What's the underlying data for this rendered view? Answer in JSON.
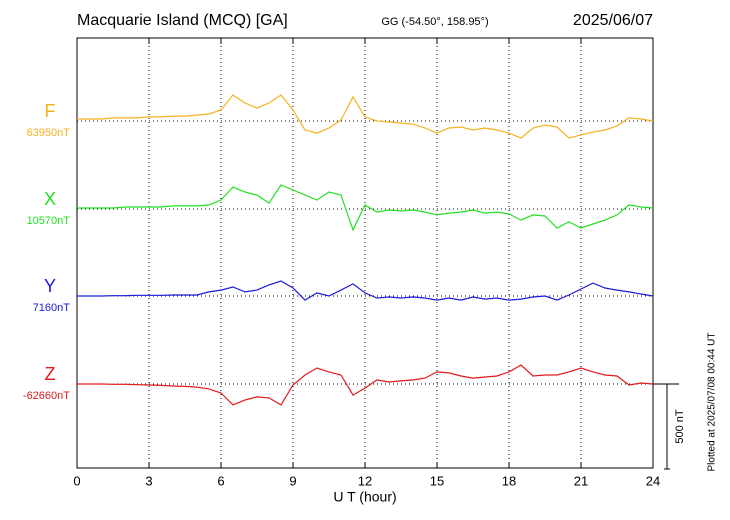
{
  "chart_data": {
    "type": "line",
    "title": "Macquarie Island (MCQ)  [GA]",
    "subtitle": "GG (-54.50°, 158.95°)",
    "date": "2025/06/07",
    "x_label": "U T (hour)",
    "note": "Plotted at 2025/07/08 00:44 UT",
    "xlim": [
      0,
      24
    ],
    "xticks": [
      0,
      3,
      6,
      9,
      12,
      15,
      18,
      21,
      24
    ],
    "grid": true,
    "scale_bar": {
      "value": 500,
      "label": "500 nT"
    },
    "x": [
      0,
      0.5,
      1,
      1.5,
      2,
      2.5,
      3,
      3.5,
      4,
      4.5,
      5,
      5.5,
      6,
      6.5,
      7,
      7.5,
      8,
      8.5,
      9,
      9.5,
      10,
      10.5,
      11,
      11.5,
      12,
      12.5,
      13,
      13.5,
      14,
      14.5,
      15,
      15.5,
      16,
      16.5,
      17,
      17.5,
      18,
      18.5,
      19,
      19.5,
      20,
      20.5,
      21,
      21.5,
      22,
      22.5,
      23,
      23.5,
      24
    ],
    "series": [
      {
        "name": "F",
        "color": "#f5b21f",
        "baseline": {
          "value": 63950,
          "label": "63950nT"
        },
        "values": [
          63962,
          63962,
          63962,
          63968,
          63968,
          63968,
          63974,
          63974,
          63979,
          63979,
          63985,
          63991,
          64015,
          64103,
          64056,
          64026,
          64056,
          64103,
          64015,
          63897,
          63879,
          63909,
          63956,
          64091,
          63974,
          63950,
          63944,
          63938,
          63932,
          63909,
          63879,
          63909,
          63915,
          63897,
          63909,
          63897,
          63879,
          63850,
          63909,
          63926,
          63915,
          63850,
          63868,
          63885,
          63897,
          63921,
          63968,
          63962,
          63950
        ]
      },
      {
        "name": "X",
        "color": "#22e022",
        "baseline": {
          "value": 10570,
          "label": "10570nT"
        },
        "values": [
          10576,
          10576,
          10576,
          10576,
          10582,
          10582,
          10582,
          10582,
          10588,
          10588,
          10588,
          10594,
          10623,
          10699,
          10670,
          10652,
          10605,
          10711,
          10682,
          10652,
          10623,
          10670,
          10652,
          10447,
          10594,
          10552,
          10564,
          10558,
          10564,
          10552,
          10535,
          10546,
          10552,
          10564,
          10546,
          10552,
          10541,
          10505,
          10535,
          10529,
          10458,
          10494,
          10458,
          10482,
          10505,
          10535,
          10594,
          10582,
          10576
        ]
      },
      {
        "name": "Y",
        "color": "#1a1adc",
        "baseline": {
          "value": 7160,
          "label": "7160nT"
        },
        "values": [
          7160,
          7160,
          7160,
          7162,
          7162,
          7164,
          7164,
          7164,
          7166,
          7166,
          7166,
          7184,
          7195,
          7213,
          7184,
          7195,
          7225,
          7248,
          7207,
          7136,
          7178,
          7160,
          7195,
          7231,
          7178,
          7148,
          7154,
          7148,
          7154,
          7148,
          7136,
          7148,
          7136,
          7154,
          7142,
          7148,
          7136,
          7142,
          7154,
          7160,
          7136,
          7166,
          7201,
          7236,
          7207,
          7195,
          7184,
          7172,
          7160
        ]
      },
      {
        "name": "Z",
        "color": "#e41a1a",
        "baseline": {
          "value": -62660,
          "label": "-62660nT"
        },
        "values": [
          -62660,
          -62660,
          -62660,
          -62662,
          -62662,
          -62664,
          -62666,
          -62668,
          -62672,
          -62674,
          -62678,
          -62689,
          -62713,
          -62783,
          -62754,
          -62736,
          -62742,
          -62783,
          -62666,
          -62607,
          -62566,
          -62589,
          -62607,
          -62725,
          -62684,
          -62636,
          -62648,
          -62642,
          -62636,
          -62625,
          -62589,
          -62595,
          -62613,
          -62625,
          -62619,
          -62613,
          -62589,
          -62548,
          -62613,
          -62607,
          -62607,
          -62589,
          -62566,
          -62589,
          -62607,
          -62613,
          -62666,
          -62654,
          -62660
        ]
      }
    ]
  }
}
